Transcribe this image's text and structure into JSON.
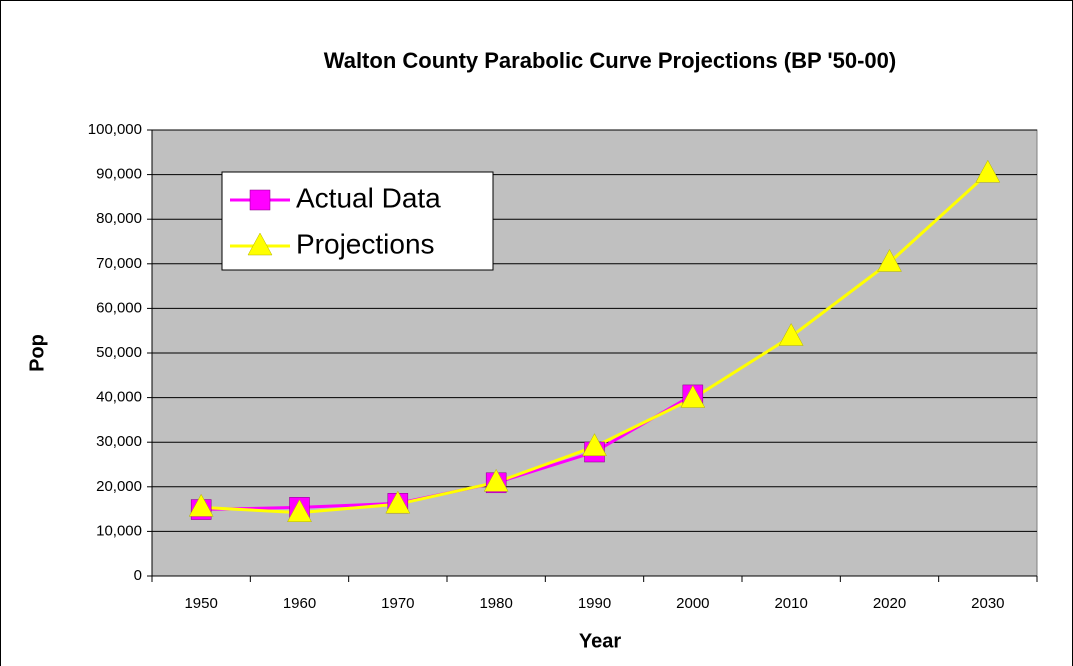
{
  "chart_data": {
    "type": "line",
    "title": "Walton County Parabolic Curve Projections (BP '50-00)",
    "x_label": "Year",
    "y_label": "Pop",
    "categories": [
      "1950",
      "1960",
      "1970",
      "1980",
      "1990",
      "2000",
      "2010",
      "2020",
      "2030"
    ],
    "series": [
      {
        "name": "Actual Data",
        "color": "#ff00ff",
        "marker": "square",
        "values": [
          14900,
          15400,
          16300,
          20900,
          27800,
          40600,
          null,
          null,
          null
        ]
      },
      {
        "name": "Projections",
        "color": "#ffff00",
        "marker": "triangle",
        "values": [
          15400,
          14200,
          16100,
          21000,
          29000,
          39800,
          53700,
          70300,
          90300
        ]
      }
    ],
    "ylim": [
      0,
      100000
    ],
    "yticks": [
      0,
      {
        "value": 10000,
        "label": "10,000"
      },
      {
        "value": 20000,
        "label": "20,000"
      },
      {
        "value": 30000,
        "label": "30,000"
      },
      {
        "value": 40000,
        "label": "40,000"
      },
      {
        "value": 50000,
        "label": "50,000"
      },
      {
        "value": 60000,
        "label": "60,000"
      },
      {
        "value": 70000,
        "label": "70,000"
      },
      {
        "value": 80000,
        "label": "80,000"
      },
      {
        "value": 90000,
        "label": "90,000"
      },
      {
        "value": 100000,
        "label": "100,000"
      }
    ],
    "grid": true,
    "plot_background": "#c0c0c0",
    "legend_position": "upper left"
  }
}
